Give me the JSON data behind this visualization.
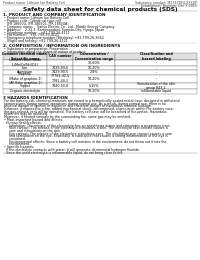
{
  "title": "Safety data sheet for chemical products (SDS)",
  "header_left": "Product name: Lithium Ion Battery Cell",
  "header_right_line1": "Substance number: M37470E4-XXXSP",
  "header_right_line2": "Established / Revision: Dec.7.2015",
  "background_color": "#ffffff",
  "text_color": "#000000",
  "section1_title": "1. PRODUCT AND COMPANY IDENTIFICATION",
  "section1_lines": [
    "• Product name: Lithium Ion Battery Cell",
    "• Product code: Cylindrical-type cell",
    "   IFR 18650U, IFR 18650L, IFR 18650A",
    "• Company name:    Sanyo Electric Co., Ltd., Mobile Energy Company",
    "• Address:    2-22-1  Kamimandani, Sumoto-City, Hyogo, Japan",
    "• Telephone number:   +81-799-26-4111",
    "• Fax number:   +81-799-26-4121",
    "• Emergency telephone number (Weekday) +81-799-26-3662",
    "   (Night and holiday) +81-799-26-4121"
  ],
  "section2_title": "2. COMPOSITION / INFORMATION ON INGREDIENTS",
  "section2_line1": "• Substance or preparation: Preparation",
  "section2_line2": "• Information about the chemical nature of product:",
  "table_headers": [
    "Common chemical name /\nScientific name",
    "CAS number",
    "Concentration /\nConcentration range",
    "Classification and\nhazard labeling"
  ],
  "table_rows": [
    [
      "Lithium cobalt oxide\n(LiMn/Co/Ni)(O2)",
      "-",
      "30-60%",
      "-"
    ],
    [
      "Iron",
      "7439-89-6",
      "10-20%",
      "-"
    ],
    [
      "Aluminum",
      "7429-90-5",
      "2-8%",
      "-"
    ],
    [
      "Graphite\n(Make of graphite-1)\n(All flake graphite-1)",
      "77782-42-5\n7782-40-3",
      "10-20%",
      "-"
    ],
    [
      "Copper",
      "7440-50-8",
      "5-15%",
      "Sensitization of the skin\ngroup R43 2"
    ],
    [
      "Organic electrolyte",
      "-",
      "10-20%",
      "Inflammable liquid"
    ]
  ],
  "section3_title": "3 HAZARDS IDENTIFICATION",
  "section3_body": [
    "For the battery cell, chemical materials are stored in a hermetically sealed metal case, designed to withstand",
    "temperatures during normal operations during normal use. As a result, during normal use, there is no",
    "physical danger of ignition or explosion and therefore danger of hazardous material leakage.",
    "However, if exposed to a fire, added mechanical shock, decomposed, short-circuit within the battery case,",
    "the gas release vent will be operated. The battery cell case will be breached of fire-proton. Hazardous",
    "materials may be released.",
    "Moreover, if heated strongly by the surrounding fire, some gas may be emitted."
  ],
  "section3_bullet1": "• Most important hazard and effects:",
  "section3_sub1": [
    "Human health effects:",
    "   Inhalation: The release of the electrolyte has an anesthesia action and stimulates a respiratory tract.",
    "   Skin contact: The release of the electrolyte stimulates a skin. The electrolyte skin contact causes a",
    "   sore and stimulation on the skin.",
    "   Eye contact: The release of the electrolyte stimulates eyes. The electrolyte eye contact causes a sore",
    "   and stimulation on the eye. Especially, a substance that causes a strong inflammation of the eye is",
    "   contained.",
    "   Environmental effects: Since a battery cell remains in the environment, do not throw out it into the",
    "   environment."
  ],
  "section3_bullet2": "• Specific hazards:",
  "section3_sub2": [
    "If the electrolyte contacts with water, it will generate detrimental hydrogen fluoride.",
    "Since the used electrolyte is inflammable liquid, do not bring close to fire."
  ],
  "footer_line": true
}
